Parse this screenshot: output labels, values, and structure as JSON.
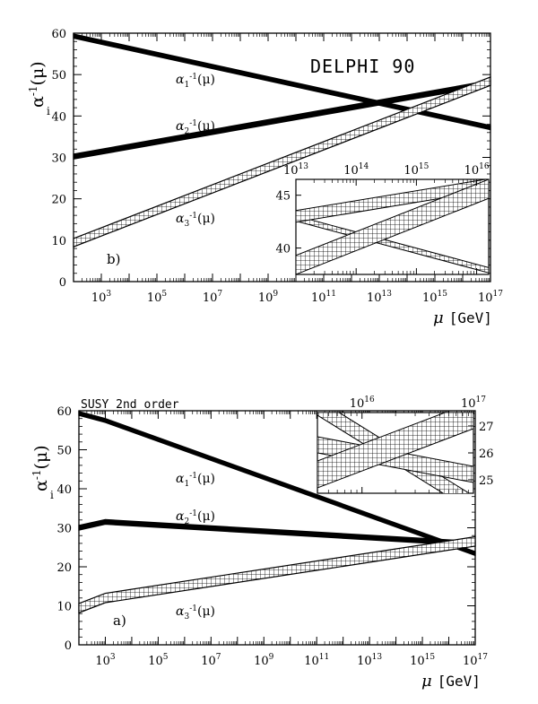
{
  "figure": {
    "panels": [
      {
        "id": "b",
        "panel_label": "b)",
        "tag": "DELPHI 90",
        "ylabel_main": "α",
        "ylabel_sub": "i",
        "ylabel_sup": "-1",
        "ylabel_arg": "(μ)",
        "xunit": "[GeV]",
        "xsym": "μ",
        "line_labels": [
          {
            "base": "α",
            "sub": "1",
            "sup": "-1",
            "arg": "(μ)"
          },
          {
            "base": "α",
            "sub": "2",
            "sup": "-1",
            "arg": "(μ)"
          },
          {
            "base": "α",
            "sub": "3",
            "sup": "-1",
            "arg": "(μ)"
          }
        ]
      },
      {
        "id": "a",
        "panel_label": "a)",
        "tag": "SUSY 2nd order",
        "ylabel_main": "α",
        "ylabel_sub": "i",
        "ylabel_sup": "-1",
        "ylabel_arg": "(μ)",
        "xunit": "[GeV]",
        "xsym": "μ",
        "line_labels": [
          {
            "base": "α",
            "sub": "1",
            "sup": "-1",
            "arg": "(μ)"
          },
          {
            "base": "α",
            "sub": "2",
            "sup": "-1",
            "arg": "(μ)"
          },
          {
            "base": "α",
            "sub": "3",
            "sup": "-1",
            "arg": "(μ)"
          }
        ]
      }
    ]
  },
  "chart_data": [
    {
      "type": "line",
      "id": "b",
      "title": "DELPHI 90",
      "xlabel": "μ [GeV]",
      "ylabel": "α_i^-1(μ)",
      "xscale": "log10",
      "xlim_exp": [
        2,
        17
      ],
      "ylim": [
        0,
        60
      ],
      "ytick_values": [
        0,
        10,
        20,
        30,
        40,
        50,
        60
      ],
      "xtick_exponents": [
        3,
        5,
        7,
        9,
        11,
        13,
        15,
        17
      ],
      "series": [
        {
          "name": "α1^-1(μ)",
          "x_exp": [
            2,
            17
          ],
          "y": [
            59.3,
            37.2
          ],
          "band": 0.5
        },
        {
          "name": "α2^-1(μ)",
          "x_exp": [
            2,
            17
          ],
          "y": [
            30.2,
            48.0
          ],
          "band": 0.6
        },
        {
          "name": "α3^-1(μ)",
          "x_exp": [
            2,
            17
          ],
          "y": [
            9.4,
            48.4
          ],
          "band": 1.0
        }
      ],
      "inset": {
        "xscale": "log10",
        "xlim_exp": [
          13,
          16.2
        ],
        "ylim": [
          37.5,
          46.5
        ],
        "ytick_values": [
          40,
          45
        ],
        "xtick_exponents": [
          13,
          14,
          15,
          16
        ],
        "series": [
          {
            "name": "α1^-1",
            "x_exp": [
              13,
              16.2
            ],
            "y": [
              42.8,
              37.9
            ],
            "band": 0.25
          },
          {
            "name": "α2^-1",
            "x_exp": [
              13,
              16.2
            ],
            "y": [
              43.0,
              46.0
            ],
            "band": 0.55
          },
          {
            "name": "α3^-1",
            "x_exp": [
              13,
              16.2
            ],
            "y": [
              38.4,
              45.6
            ],
            "band": 0.9
          }
        ]
      }
    },
    {
      "type": "line",
      "id": "a",
      "title": "SUSY 2nd order",
      "xlabel": "μ [GeV]",
      "ylabel": "α_i^-1(μ)",
      "xscale": "log10",
      "xlim_exp": [
        2,
        17
      ],
      "ylim": [
        0,
        60
      ],
      "ytick_values": [
        0,
        10,
        20,
        30,
        40,
        50,
        60
      ],
      "xtick_exponents": [
        3,
        5,
        7,
        9,
        11,
        13,
        15,
        17
      ],
      "series": [
        {
          "name": "α1^-1(μ)",
          "x_exp": [
            2,
            3,
            17
          ],
          "y": [
            59.3,
            57.5,
            23.4
          ],
          "band": 0.5
        },
        {
          "name": "α2^-1(μ)",
          "x_exp": [
            2,
            3,
            17
          ],
          "y": [
            30.0,
            31.5,
            25.9
          ],
          "band": 0.6
        },
        {
          "name": "α3^-1(μ)",
          "x_exp": [
            2,
            3,
            17
          ],
          "y": [
            9.4,
            12.0,
            26.5
          ],
          "band": 1.2
        }
      ],
      "inset": {
        "xscale": "log10",
        "xlim_exp": [
          15.6,
          17
        ],
        "ylim": [
          24.5,
          27.5
        ],
        "ytick_values": [
          25,
          26,
          27
        ],
        "xtick_exponents": [
          16,
          17
        ],
        "series": [
          {
            "name": "α1^-1",
            "x_exp": [
              15.6,
              17
            ],
            "y": [
              27.7,
              24.1
            ],
            "band": 0.3
          },
          {
            "name": "α2^-1",
            "x_exp": [
              15.6,
              17
            ],
            "y": [
              26.3,
              25.2
            ],
            "band": 0.3
          },
          {
            "name": "α3^-1",
            "x_exp": [
              15.6,
              17
            ],
            "y": [
              25.2,
              27.4
            ],
            "band": 0.5
          }
        ]
      }
    }
  ]
}
